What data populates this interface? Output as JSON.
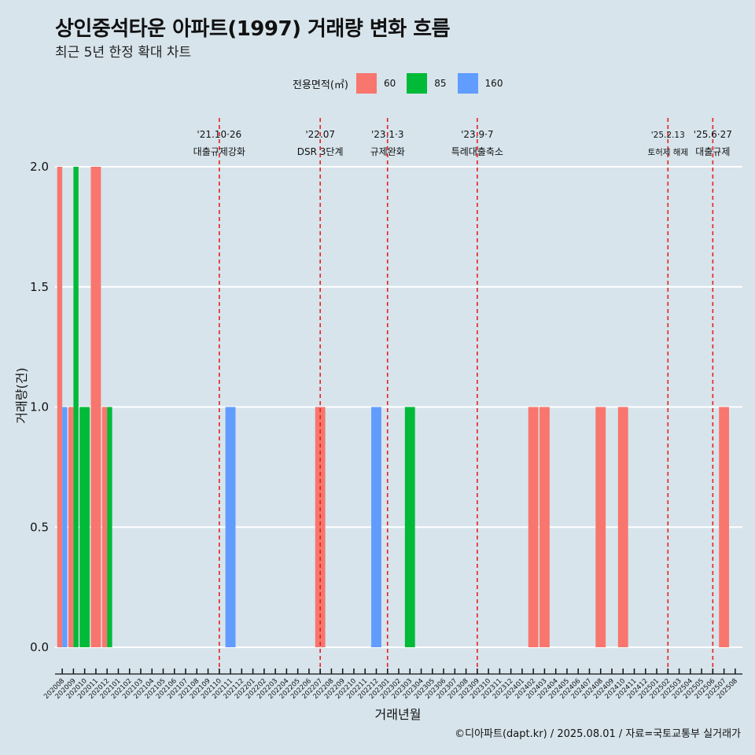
{
  "header": {
    "title": "상인중석타운 아파트(1997) 거래량 변화 흐름",
    "subtitle": "최근 5년 한정 확대 차트"
  },
  "legend": {
    "title": "전용면적(㎡)",
    "items": [
      {
        "label": "60",
        "color": "#f8766d"
      },
      {
        "label": "85",
        "color": "#00ba38"
      },
      {
        "label": "160",
        "color": "#619cff"
      }
    ]
  },
  "caption": "©디아파트(dapt.kr) / 2025.08.01 / 자료=국토교통부 실거래가",
  "chart_data": {
    "type": "bar",
    "title": "상인중석타운 아파트(1997) 거래량 변화 흐름",
    "subtitle": "최근 5년 한정 확대 차트",
    "xlabel": "거래년월",
    "ylabel": "거래량(건)",
    "ylim": [
      0,
      2
    ],
    "yticks": [
      "0.0",
      "0.5",
      "1.0",
      "1.5",
      "2.0"
    ],
    "grid": "horizontal",
    "legend_position": "top",
    "categories": [
      "202008",
      "202009",
      "202010",
      "202011",
      "202012",
      "202101",
      "202102",
      "202103",
      "202104",
      "202105",
      "202106",
      "202107",
      "202108",
      "202109",
      "202110",
      "202111",
      "202112",
      "202201",
      "202202",
      "202203",
      "202204",
      "202205",
      "202206",
      "202207",
      "202208",
      "202209",
      "202210",
      "202211",
      "202212",
      "202301",
      "202302",
      "202303",
      "202304",
      "202305",
      "202306",
      "202307",
      "202308",
      "202309",
      "202310",
      "202311",
      "202312",
      "202401",
      "202402",
      "202403",
      "202404",
      "202405",
      "202406",
      "202407",
      "202408",
      "202409",
      "202410",
      "202411",
      "202412",
      "202501",
      "202502",
      "202503",
      "202504",
      "202505",
      "202506",
      "202507",
      "202508"
    ],
    "series": [
      {
        "name": "60",
        "color": "#f8766d",
        "values": [
          2,
          1,
          0,
          2,
          1,
          0,
          0,
          0,
          0,
          0,
          0,
          0,
          0,
          0,
          0,
          0,
          0,
          0,
          0,
          0,
          0,
          0,
          0,
          1,
          0,
          0,
          0,
          0,
          0,
          0,
          0,
          0,
          0,
          0,
          0,
          0,
          0,
          0,
          0,
          0,
          0,
          0,
          1,
          1,
          0,
          0,
          0,
          0,
          1,
          0,
          1,
          0,
          0,
          0,
          0,
          0,
          0,
          0,
          0,
          1,
          0
        ]
      },
      {
        "name": "85",
        "color": "#00ba38",
        "values": [
          0,
          2,
          1,
          0,
          1,
          0,
          0,
          0,
          0,
          0,
          0,
          0,
          0,
          0,
          0,
          0,
          0,
          0,
          0,
          0,
          0,
          0,
          0,
          0,
          0,
          0,
          0,
          0,
          0,
          0,
          0,
          1,
          0,
          0,
          0,
          0,
          0,
          0,
          0,
          0,
          0,
          0,
          0,
          0,
          0,
          0,
          0,
          0,
          0,
          0,
          0,
          0,
          0,
          0,
          0,
          0,
          0,
          0,
          0,
          0,
          0
        ]
      },
      {
        "name": "160",
        "color": "#619cff",
        "values": [
          1,
          0,
          0,
          0,
          0,
          0,
          0,
          0,
          0,
          0,
          0,
          0,
          0,
          0,
          0,
          1,
          0,
          0,
          0,
          0,
          0,
          0,
          0,
          0,
          0,
          0,
          0,
          0,
          1,
          0,
          0,
          0,
          0,
          0,
          0,
          0,
          0,
          0,
          0,
          0,
          0,
          0,
          0,
          0,
          0,
          0,
          0,
          0,
          0,
          0,
          0,
          0,
          0,
          0,
          0,
          0,
          0,
          0,
          0,
          0,
          0
        ]
      }
    ],
    "events": [
      {
        "month": "202110",
        "date": "'21.10·26",
        "label": "대출규제강화",
        "small": false
      },
      {
        "month": "202207",
        "date": "'22.07",
        "label": "DSR 3단계",
        "small": false
      },
      {
        "month": "202301",
        "date": "'23.1·3",
        "label": "규제완화",
        "small": false
      },
      {
        "month": "202309",
        "date": "'23.9·7",
        "label": "특례대출축소",
        "small": false
      },
      {
        "month": "202502",
        "date": "'25.2.13",
        "label": "토허제 해제",
        "small": true
      },
      {
        "month": "202506",
        "date": "'25.6·27",
        "label": "대출규제",
        "small": false
      }
    ]
  }
}
